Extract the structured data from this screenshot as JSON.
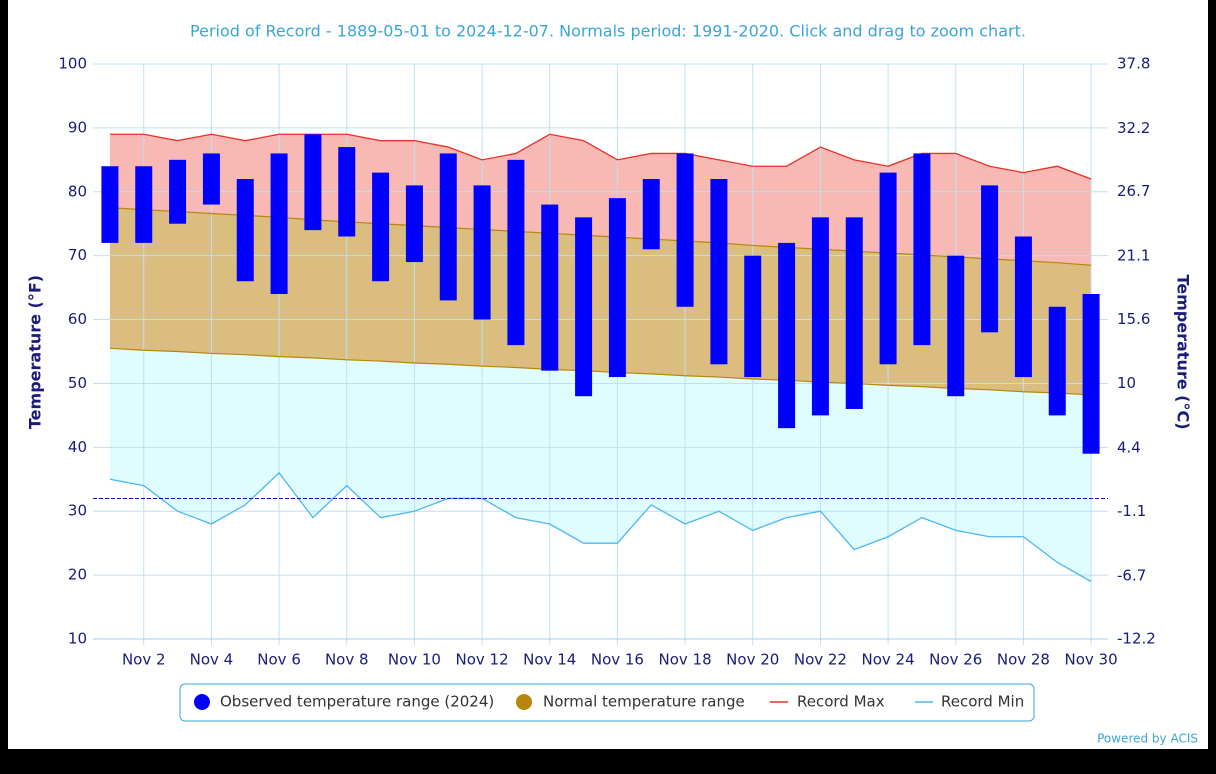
{
  "chart_data": {
    "type": "range",
    "subtitle": "Period of Record - 1889-05-01 to 2024-12-07. Normals period: 1991-2020. Click and drag to zoom chart.",
    "ylabel": "Temperature (°F)",
    "y2label": "Temperature (°C)",
    "credits": "Powered by ACIS",
    "grid": true,
    "legend": "bottom",
    "freeze_line": 32,
    "freeze_color": "#1010b0",
    "x": [
      1,
      2,
      3,
      4,
      5,
      6,
      7,
      8,
      9,
      10,
      11,
      12,
      13,
      14,
      15,
      16,
      17,
      18,
      19,
      20,
      21,
      22,
      23,
      24,
      25,
      26,
      27,
      28,
      29,
      30
    ],
    "xlim": [
      0.5,
      30.5
    ],
    "xticks": [
      {
        "value": 2,
        "label": "Nov 2"
      },
      {
        "value": 4,
        "label": "Nov 4"
      },
      {
        "value": 6,
        "label": "Nov 6"
      },
      {
        "value": 8,
        "label": "Nov 8"
      },
      {
        "value": 10,
        "label": "Nov 10"
      },
      {
        "value": 12,
        "label": "Nov 12"
      },
      {
        "value": 14,
        "label": "Nov 14"
      },
      {
        "value": 16,
        "label": "Nov 16"
      },
      {
        "value": 18,
        "label": "Nov 18"
      },
      {
        "value": 20,
        "label": "Nov 20"
      },
      {
        "value": 22,
        "label": "Nov 22"
      },
      {
        "value": 24,
        "label": "Nov 24"
      },
      {
        "value": 26,
        "label": "Nov 26"
      },
      {
        "value": 28,
        "label": "Nov 28"
      },
      {
        "value": 30,
        "label": "Nov 30"
      }
    ],
    "ylim": [
      10,
      100
    ],
    "yticks": [
      10,
      20,
      30,
      40,
      50,
      60,
      70,
      80,
      90,
      100
    ],
    "y2lim": [
      -12.2,
      37.8
    ],
    "y2ticks": [
      -12.2,
      -6.7,
      -1.1,
      4.4,
      10,
      15.6,
      21.1,
      26.7,
      32.2,
      37.8
    ],
    "series": [
      {
        "name": "Observed temperature range (2024)",
        "color": "#0000ff",
        "low": [
          72,
          72,
          75,
          78,
          66,
          64,
          74,
          73,
          66,
          69,
          63,
          60,
          56,
          52,
          48,
          51,
          71,
          62,
          53,
          51,
          43,
          45,
          46,
          53,
          56,
          48,
          58,
          51,
          45,
          39
        ],
        "high": [
          84,
          84,
          85,
          86,
          82,
          86,
          89,
          87,
          83,
          81,
          86,
          81,
          85,
          78,
          76,
          79,
          82,
          86,
          82,
          70,
          72,
          76,
          76,
          83,
          86,
          70,
          81,
          73,
          62,
          64
        ]
      },
      {
        "name": "Normal temperature range",
        "color": "#b8860b",
        "fill": "#dbbd80",
        "low": [
          55.5,
          55.2,
          55.0,
          54.7,
          54.5,
          54.2,
          54.0,
          53.7,
          53.5,
          53.2,
          53.0,
          52.7,
          52.5,
          52.2,
          52.0,
          51.7,
          51.5,
          51.2,
          51.0,
          50.7,
          50.5,
          50.2,
          50.0,
          49.7,
          49.5,
          49.2,
          49.0,
          48.7,
          48.5,
          48.2
        ],
        "high": [
          77.5,
          77.2,
          76.9,
          76.6,
          76.3,
          76.0,
          75.6,
          75.3,
          75.0,
          74.7,
          74.4,
          74.1,
          73.8,
          73.5,
          73.2,
          72.9,
          72.6,
          72.3,
          72.0,
          71.6,
          71.3,
          71.0,
          70.7,
          70.4,
          70.1,
          69.8,
          69.5,
          69.2,
          68.9,
          68.5
        ]
      },
      {
        "name": "Record Max",
        "color": "#e8312a",
        "fill": "#f8b9b4",
        "values": [
          89,
          89,
          88,
          89,
          88,
          89,
          89,
          89,
          88,
          88,
          87,
          85,
          86,
          89,
          88,
          85,
          86,
          86,
          85,
          84,
          84,
          87,
          85,
          84,
          86,
          86,
          84,
          83,
          84,
          82
        ]
      },
      {
        "name": "Record Min",
        "color": "#4db8ee",
        "fill": "#dffcff",
        "values": [
          35,
          34,
          30,
          28,
          31,
          36,
          29,
          34,
          29,
          30,
          32,
          32,
          29,
          28,
          25,
          25,
          31,
          28,
          30,
          27,
          29,
          30,
          24,
          26,
          29,
          27,
          26,
          26,
          22,
          19
        ]
      }
    ]
  }
}
